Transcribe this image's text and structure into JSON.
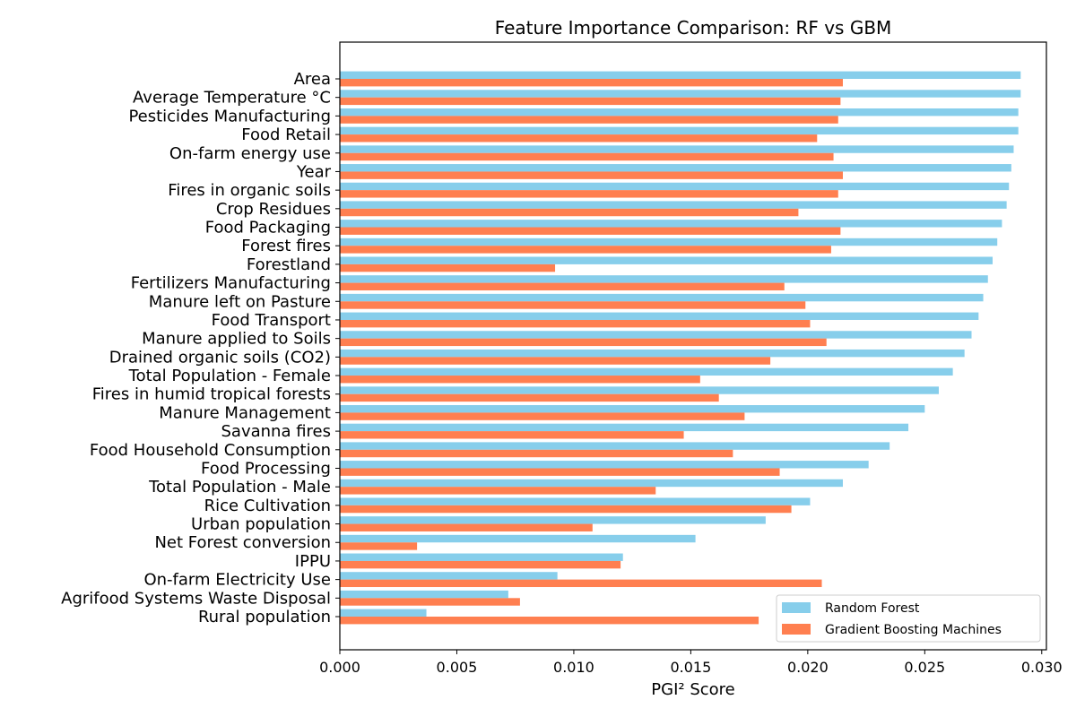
{
  "chart_data": {
    "type": "bar",
    "orientation": "horizontal",
    "title": "Feature Importance Comparison: RF vs GBM",
    "xlabel": "PGI² Score",
    "ylabel": "",
    "xlim": [
      0,
      0.0302
    ],
    "xticks": [
      "0.000",
      "0.005",
      "0.010",
      "0.015",
      "0.020",
      "0.025",
      "0.030"
    ],
    "grid": false,
    "legend_position": "lower-right",
    "categories": [
      "Area",
      "Average Temperature °C",
      "Pesticides Manufacturing",
      "Food Retail",
      "On-farm energy use",
      "Year",
      "Fires in organic soils",
      "Crop Residues",
      "Food Packaging",
      "Forest fires",
      "Forestland",
      "Fertilizers Manufacturing",
      "Manure left on Pasture",
      "Food Transport",
      "Manure applied to Soils",
      "Drained organic soils (CO2)",
      "Total Population - Female",
      "Fires in humid tropical forests",
      "Manure Management",
      "Savanna fires",
      "Food Household Consumption",
      "Food Processing",
      "Total Population - Male",
      "Rice Cultivation",
      "Urban population",
      "Net Forest conversion",
      "IPPU",
      "On-farm Electricity Use",
      "Agrifood Systems Waste Disposal",
      "Rural population"
    ],
    "series": [
      {
        "name": "Random Forest",
        "color": "#87ceeb",
        "values": [
          0.0291,
          0.0291,
          0.029,
          0.029,
          0.0288,
          0.0287,
          0.0286,
          0.0285,
          0.0283,
          0.0281,
          0.0279,
          0.0277,
          0.0275,
          0.0273,
          0.027,
          0.0267,
          0.0262,
          0.0256,
          0.025,
          0.0243,
          0.0235,
          0.0226,
          0.0215,
          0.0201,
          0.0182,
          0.0152,
          0.0121,
          0.0093,
          0.0072,
          0.0037
        ]
      },
      {
        "name": "Gradient Boosting Machines",
        "color": "#ff7f50",
        "values": [
          0.0215,
          0.0214,
          0.0213,
          0.0204,
          0.0211,
          0.0215,
          0.0213,
          0.0196,
          0.0214,
          0.021,
          0.0092,
          0.019,
          0.0199,
          0.0201,
          0.0208,
          0.0184,
          0.0154,
          0.0162,
          0.0173,
          0.0147,
          0.0168,
          0.0188,
          0.0135,
          0.0193,
          0.0108,
          0.0033,
          0.012,
          0.0206,
          0.0077,
          0.0179
        ]
      }
    ]
  }
}
